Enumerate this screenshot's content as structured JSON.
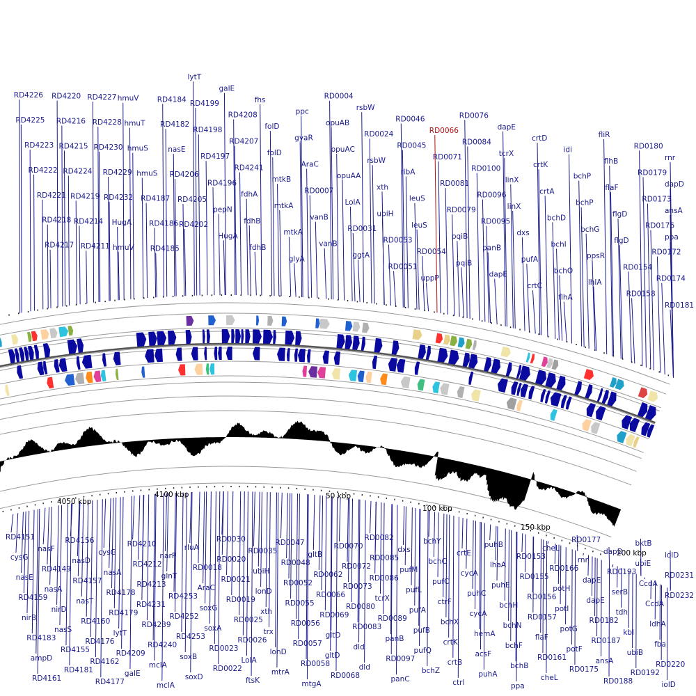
{
  "colors": {
    "label": "#1a1a8c",
    "highlight_label": "#b01010",
    "gene_forward": "#0a0aa0",
    "gene_reverse": "#0a0aa0",
    "gc_skew": "#000000",
    "ring_border": "#9a9a9a",
    "backbone": "#555555"
  },
  "highlighted_label": "RD0066",
  "ticks": [
    "4050 kbp",
    "4100 kbp",
    "50 kbp",
    "100 kbp",
    "150 kbp",
    "200 kbp"
  ],
  "top_labels": [
    "RD4226",
    "RD4225",
    "RD4223",
    "RD4222",
    "RD4221",
    "RD4218",
    "RD4217",
    "RD4220",
    "RD4216",
    "RD4215",
    "RD4224",
    "RD4219",
    "RD4214",
    "RD4211",
    "RD4227",
    "RD4228",
    "RD4230",
    "RD4229",
    "RD4232",
    "HugA",
    "hmuV",
    "hmuV",
    "hmuT",
    "hmuS",
    "hmuS",
    "RD4187",
    "RD4186",
    "RD4185",
    "RD4184",
    "RD4182",
    "nasE",
    "RD4206",
    "RD4205",
    "RD4202",
    "lytT",
    "RD4199",
    "RD4198",
    "RD4197",
    "RD4196",
    "pepN",
    "HugA",
    "galE",
    "RD4208",
    "RD4207",
    "RD4241",
    "fdhA",
    "fdhB",
    "fdhB",
    "fhs",
    "folD",
    "folD",
    "mtkB",
    "mtkA",
    "mtkA",
    "glyA",
    "ppc",
    "gyaR",
    "AraC",
    "RD0007",
    "vanB",
    "vanB",
    "RD0004",
    "opuAB",
    "opuAC",
    "opuAA",
    "LolA",
    "RD0031",
    "ggtA",
    "rsbW",
    "RD0024",
    "rsbW",
    "xth",
    "ubiH",
    "RD0053",
    "RD0051",
    "RD0046",
    "RD0045",
    "ribA",
    "leuS",
    "leuS",
    "RD0054",
    "uppP",
    "RD0066",
    "RD0071",
    "RD0081",
    "RD0079",
    "pqiB",
    "pqiB",
    "RD0076",
    "RD0084",
    "RD0100",
    "RD0096",
    "RD0095",
    "panB",
    "dapE",
    "dapE",
    "tcrX",
    "linX",
    "linX",
    "dxs",
    "pufA",
    "crtC",
    "crtD",
    "crtK",
    "crtA",
    "bchD",
    "bchI",
    "bchO",
    "flhA",
    "idi",
    "bchP",
    "bchP",
    "bchG",
    "ppsR",
    "lhlA",
    "fliR",
    "flhB",
    "flaF",
    "flgD",
    "flgD",
    "RD0154",
    "RD0158",
    "RD0180",
    "RD0179",
    "RD0173",
    "RD0176",
    "RD0172",
    "RD0174",
    "RD0181",
    "rnr",
    "dapD",
    "ansA",
    "ppa"
  ],
  "bottom_labels": [
    "RD4151",
    "cysG",
    "nasE",
    "RD4159",
    "nirB",
    "RD4183",
    "ampD",
    "RD4161",
    "nasF",
    "RD4149",
    "nasA",
    "nirD",
    "nasS",
    "RD4155",
    "RD4181",
    "RD4156",
    "nasD",
    "RD4157",
    "nasT",
    "RD4160",
    "RD4176",
    "RD4162",
    "RD4177",
    "cysG",
    "nasA",
    "RD4178",
    "RD4179",
    "lytT",
    "RD4209",
    "galE",
    "RD4210",
    "RD4212",
    "RD4213",
    "RD4231",
    "RD4239",
    "RD4240",
    "mclA",
    "mclA",
    "narP",
    "glnT",
    "RD4253",
    "RD4252",
    "RD4253",
    "soxB",
    "soxD",
    "rluA",
    "RD0018",
    "AraC",
    "soxG",
    "soxA",
    "RD0023",
    "RD0022",
    "RD0030",
    "RD0020",
    "RD0021",
    "RD0019",
    "RD0025",
    "RD0026",
    "LolA",
    "ftsK",
    "RD0035",
    "ubiH",
    "lonD",
    "xth",
    "trx",
    "lonD",
    "mtrA",
    "RD0047",
    "RD0048",
    "RD0052",
    "RD0055",
    "RD0056",
    "RD0057",
    "RD0058",
    "mtgA",
    "gltB",
    "RD0062",
    "RD0066",
    "RD0069",
    "gltD",
    "gltD",
    "RD0068",
    "RD0070",
    "RD0072",
    "RD0073",
    "RD0080",
    "RD0083",
    "dld",
    "dld",
    "RD0082",
    "RD0085",
    "RD0086",
    "tcrX",
    "RD0089",
    "panB",
    "RD0097",
    "panC",
    "dxs",
    "pufM",
    "pufL",
    "pufA",
    "pufB",
    "pufQ",
    "bchZ",
    "bchY",
    "bchC",
    "pufC",
    "ctrF",
    "bchX",
    "crtK",
    "crtB",
    "ctrl",
    "crtE",
    "cycA",
    "puhC",
    "cycA",
    "hemA",
    "acsF",
    "puhA",
    "puhB",
    "lhaA",
    "puhE",
    "bchH",
    "bchN",
    "bchF",
    "bchB",
    "ppa",
    "RD0153",
    "RD0155",
    "RD0156",
    "RD0157",
    "flaF",
    "RD0161",
    "cheL",
    "cheL",
    "RD0166",
    "potH",
    "potI",
    "potG",
    "potF",
    "RD0175",
    "RD0177",
    "rnr",
    "dapE",
    "dapE",
    "RD0182",
    "RD0187",
    "ansA",
    "RD0188",
    "dapD",
    "RD0193",
    "serB",
    "tdh",
    "kbl",
    "ubiB",
    "RD0192",
    "bktB",
    "ubiE",
    "CcdA",
    "CcdA",
    "ldhA",
    "fba",
    "RD0220",
    "iolD",
    "iolD",
    "RD0231",
    "RD0232"
  ]
}
